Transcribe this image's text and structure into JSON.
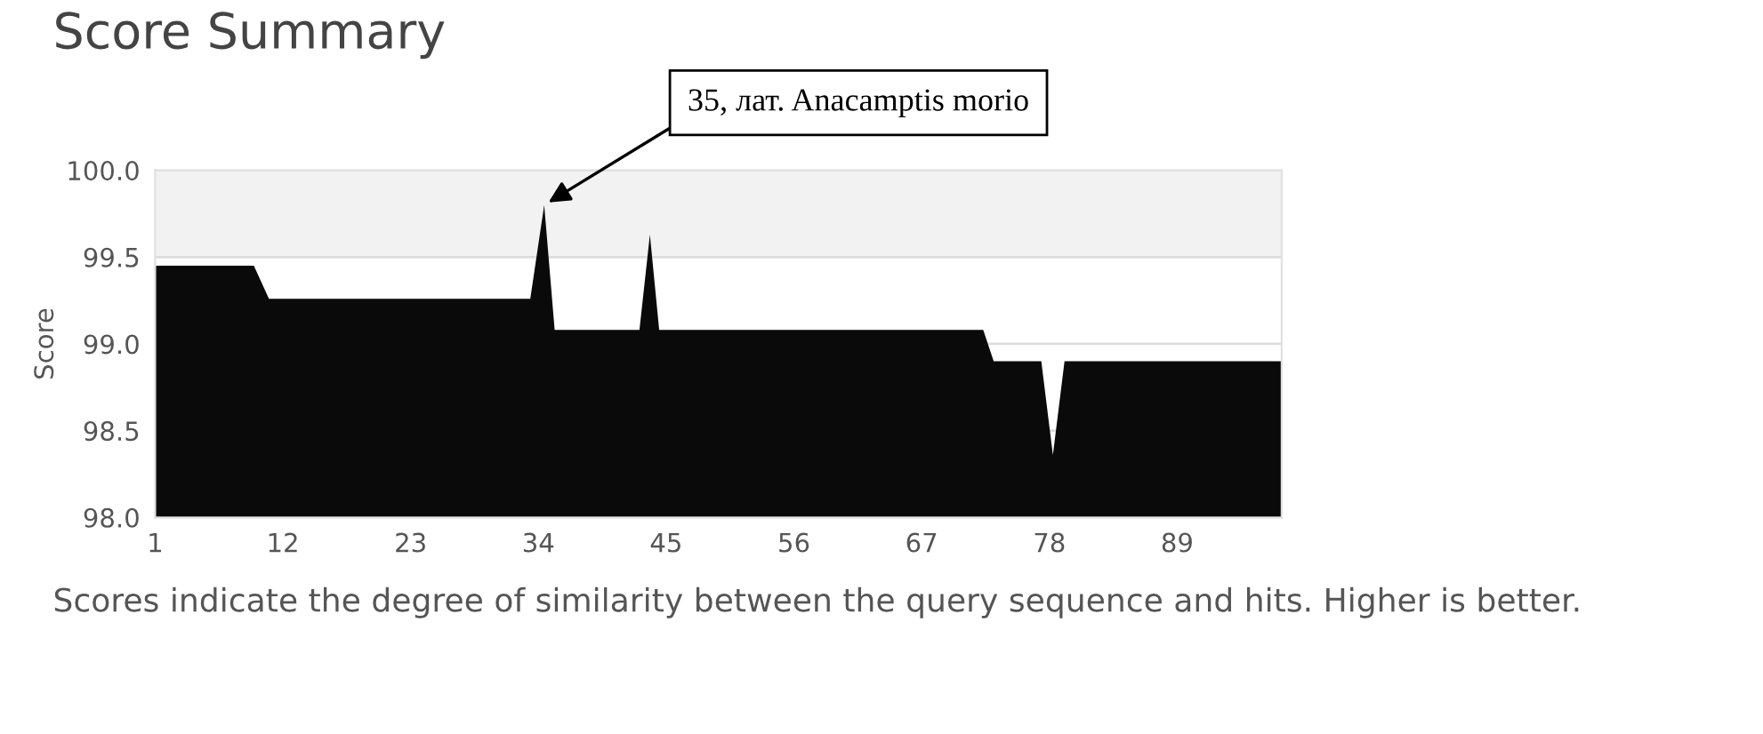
{
  "chart_data": {
    "type": "area",
    "title": "Score Summary",
    "ylabel": "Score",
    "x": [
      1,
      9.5,
      10.8,
      33.3,
      34.5,
      35.4,
      42.7,
      43.6,
      44.4,
      72.3,
      73.2,
      77.3,
      78.3,
      79.3,
      98
    ],
    "series": [
      {
        "color": "#0a0a0a",
        "values": [
          99.45,
          99.45,
          99.26,
          99.26,
          99.8,
          99.08,
          99.08,
          99.63,
          99.08,
          99.08,
          98.9,
          98.9,
          98.36,
          98.9,
          98.9
        ]
      }
    ],
    "xlim": [
      1,
      98
    ],
    "xticks": [
      1,
      12,
      23,
      34,
      45,
      56,
      67,
      78,
      89
    ],
    "ylim": [
      98.0,
      100.0
    ],
    "yticks": [
      {
        "value": 98.0,
        "label": "98.0"
      },
      {
        "value": 98.5,
        "label": "98.5"
      },
      {
        "value": 99.0,
        "label": "99.0"
      },
      {
        "value": 99.5,
        "label": "99.5"
      },
      {
        "value": 100.0,
        "label": "100.0"
      }
    ],
    "grid": "y",
    "bands": [
      {
        "axis": "y",
        "from": 99.5,
        "to": 100.0,
        "color": "#f2f2f2"
      }
    ],
    "annotations": [
      {
        "text": "35, лат. Anacamptis morio",
        "x": 34.5,
        "y": 99.8
      },
      "Scores indicate the degree of similarity between the query sequence and hits. Higher is better."
    ]
  }
}
